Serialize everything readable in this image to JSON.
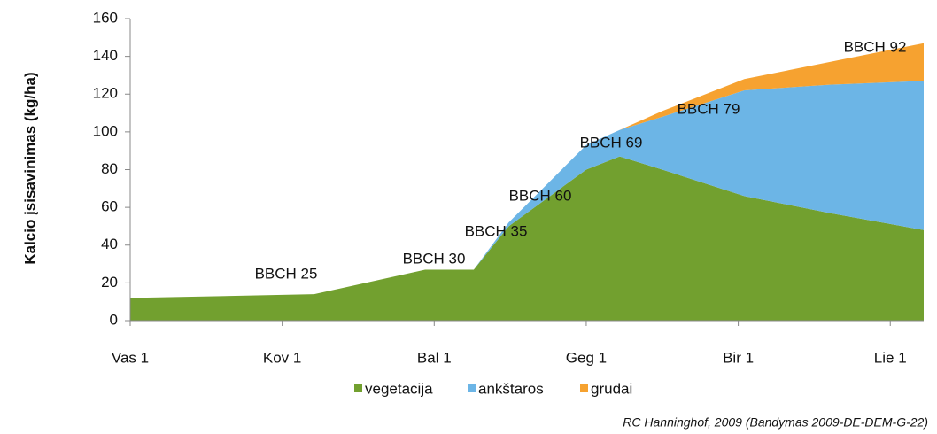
{
  "chart_data": {
    "type": "stacked_area",
    "ylabel": "Kalcio įsisavinimas (kg/ha)",
    "x": [
      0,
      1.21,
      1.94,
      2.26,
      2.49,
      3.0,
      3.22,
      3.5,
      4.04,
      4.6,
      5.22
    ],
    "series": [
      {
        "name": "vegetacija",
        "color": "#72a02f",
        "values": [
          12,
          14,
          27,
          27,
          50,
          80,
          87,
          80,
          66,
          57,
          48
        ]
      },
      {
        "name": "ankštaros",
        "color": "#6cb5e6",
        "values": [
          0,
          0,
          0,
          0,
          2,
          13,
          14,
          28,
          56,
          68,
          79
        ]
      },
      {
        "name": "grūdai",
        "color": "#f6a230",
        "values": [
          0,
          0,
          0,
          0,
          0,
          0,
          0,
          3,
          6,
          12,
          20
        ]
      }
    ],
    "xlim": [
      0,
      5.22
    ],
    "xticks": [
      {
        "value": 0,
        "label": "Vas 1"
      },
      {
        "value": 1,
        "label": "Kov 1"
      },
      {
        "value": 2,
        "label": "Bal 1"
      },
      {
        "value": 3,
        "label": "Geg 1"
      },
      {
        "value": 4,
        "label": "Bir 1"
      },
      {
        "value": 5,
        "label": "Lie 1"
      }
    ],
    "ylim": [
      0,
      160
    ],
    "yticks": [
      0,
      20,
      40,
      60,
      80,
      100,
      120,
      140,
      160
    ],
    "annotations": [
      "BBCH 25",
      "BBCH 30",
      "BBCH 35",
      "BBCH 60",
      "BBCH 69",
      "BBCH 79",
      "BBCH 92"
    ],
    "legend": "bottom",
    "source": "RC Hanninghof, 2009 (Bandymas 2009-DE-DEM-G-22)"
  }
}
